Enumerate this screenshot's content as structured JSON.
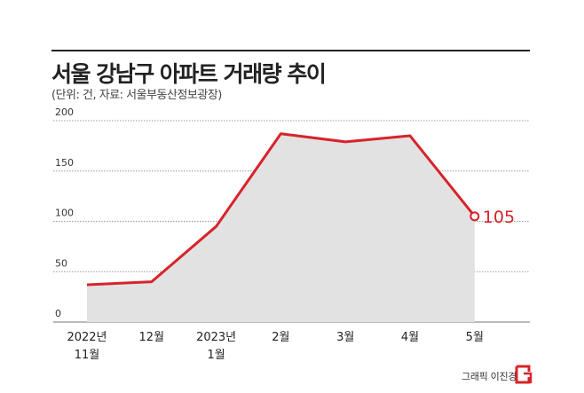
{
  "header": {
    "title": "서울 강남구 아파트 거래량 추이",
    "subtitle": "(단위: 건, 자료: 서울부동산정보광장)"
  },
  "chart_data": {
    "type": "area",
    "categories": [
      [
        "2022년",
        "11월"
      ],
      [
        "12월"
      ],
      [
        "2023년",
        "1월"
      ],
      [
        "2월"
      ],
      [
        "3월"
      ],
      [
        "4월"
      ],
      [
        "5월"
      ]
    ],
    "values": [
      37,
      40,
      95,
      187,
      179,
      185,
      105
    ],
    "highlight": {
      "index": 6,
      "label": "105"
    },
    "yticks": [
      "0",
      "50",
      "100",
      "150",
      "200"
    ],
    "ylim": [
      0,
      200
    ],
    "grid": true,
    "colors": {
      "line": "#d8232a",
      "fill": "#e2e2e2",
      "grid": "#999999"
    }
  },
  "footer": {
    "credit": "그래픽 이진경"
  }
}
